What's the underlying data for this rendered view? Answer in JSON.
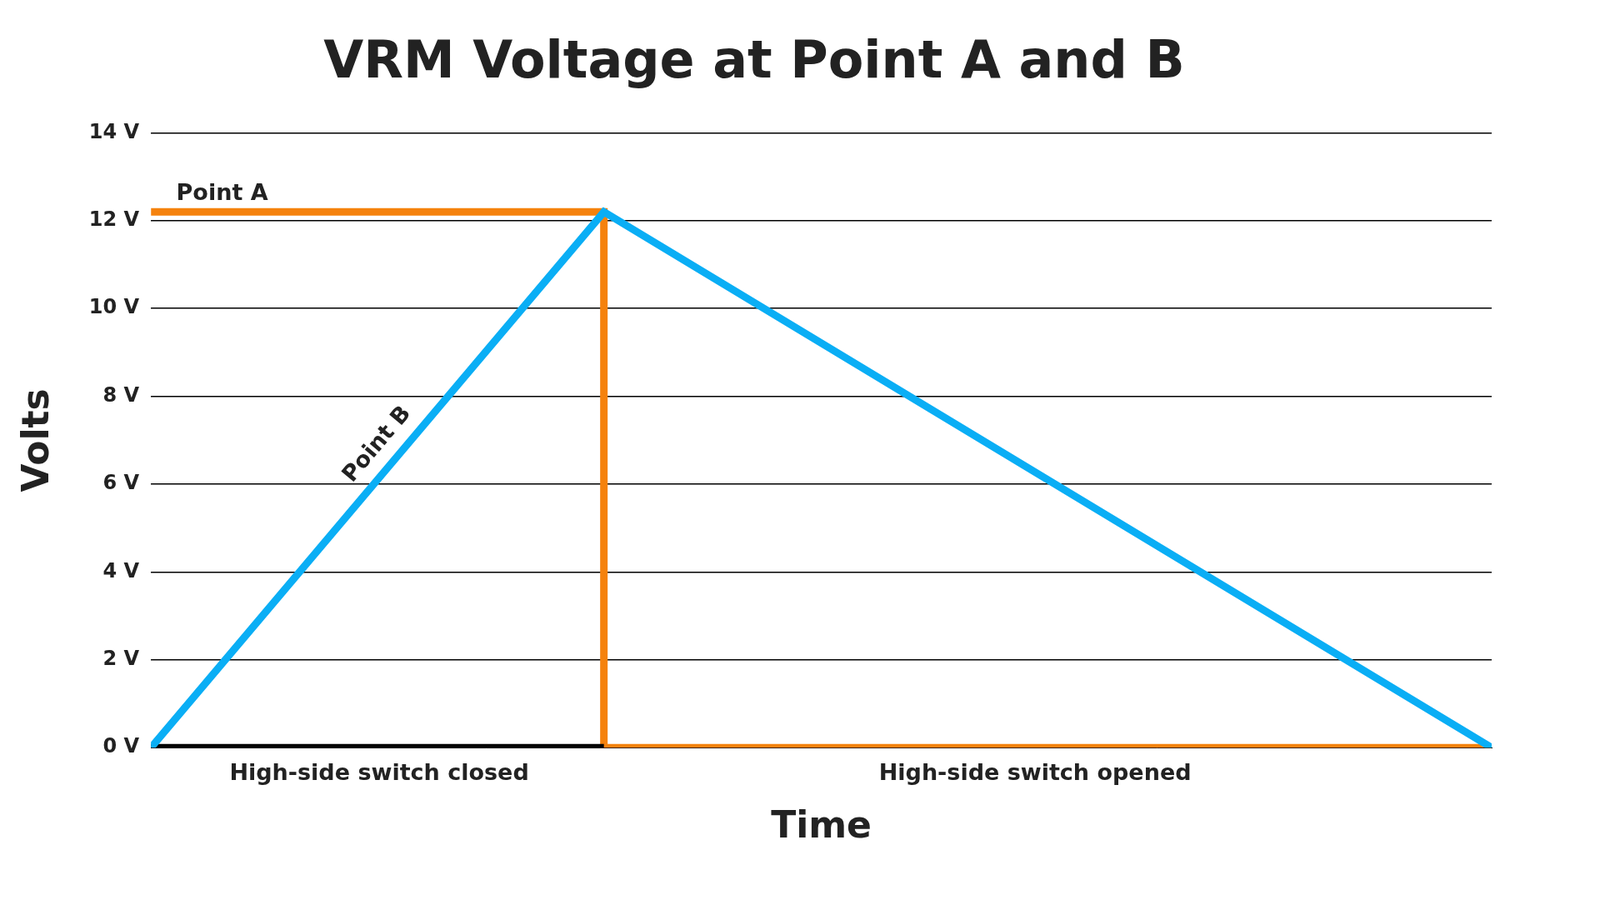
{
  "chart_data": {
    "type": "line",
    "title": "VRM Voltage at Point A and B",
    "x_label": "Time",
    "y_label": "Volts",
    "x": [
      0,
      1,
      1,
      2.96
    ],
    "series": [
      {
        "name": "Point A",
        "color": "#f5820d",
        "values": [
          12.2,
          12.2,
          0,
          0
        ]
      },
      {
        "name": "Point B",
        "color": "#0aaef5",
        "values": [
          0,
          12.2,
          12.2,
          0
        ]
      },
      {
        "color": "#000000",
        "values": [
          0,
          0,
          null,
          null
        ]
      }
    ],
    "xlim": [
      0,
      2.96
    ],
    "ylim": [
      0,
      14
    ],
    "yticks": [
      {
        "value": 0,
        "label": "0 V"
      },
      {
        "value": 2,
        "label": "2 V"
      },
      {
        "value": 4,
        "label": "4 V"
      },
      {
        "value": 6,
        "label": "6 V"
      },
      {
        "value": 8,
        "label": "8 V"
      },
      {
        "value": 10,
        "label": "10 V"
      },
      {
        "value": 12,
        "label": "12 V"
      },
      {
        "value": 14,
        "label": "14 V"
      }
    ],
    "grid": true,
    "tick_labels": "y",
    "annotations": [
      {
        "text": "Point A",
        "x": 0.056,
        "y": 12.6
      },
      {
        "text": "Point B",
        "x": 0.5,
        "y": 6.9
      },
      {
        "text": "High-side switch closed",
        "x": 0.504,
        "y": -0.6
      },
      {
        "text": "High-side switch opened",
        "x": 1.952,
        "y": -0.6
      }
    ]
  }
}
